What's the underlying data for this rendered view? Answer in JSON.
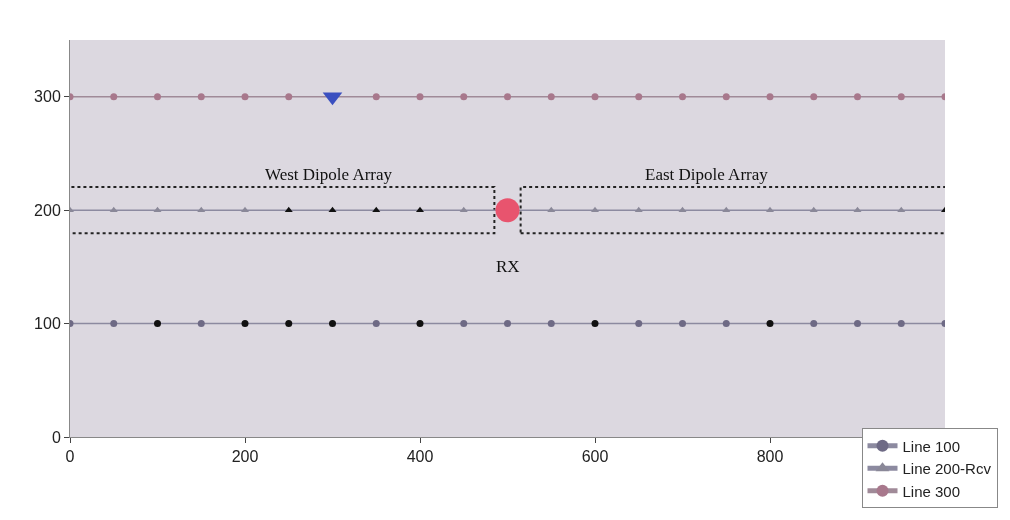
{
  "chart_data": {
    "type": "line",
    "x": [
      0,
      50,
      100,
      150,
      200,
      250,
      300,
      350,
      400,
      450,
      500,
      550,
      600,
      650,
      700,
      750,
      800,
      850,
      900,
      950,
      1000
    ],
    "series": [
      {
        "name": "Line 100",
        "color": "#8c8aa0",
        "marker": "circle",
        "values": [
          100,
          100,
          100,
          100,
          100,
          100,
          100,
          100,
          100,
          100,
          100,
          100,
          100,
          100,
          100,
          100,
          100,
          100,
          100,
          100,
          100
        ],
        "colors": [
          "#6e6a85",
          "#6e6a85",
          "#111111",
          "#6e6a85",
          "#111111",
          "#111111",
          "#111111",
          "#6e6a85",
          "#111111",
          "#6e6a85",
          "#6e6a85",
          "#6e6a85",
          "#111111",
          "#6e6a85",
          "#6e6a85",
          "#6e6a85",
          "#111111",
          "#6e6a85",
          "#6e6a85",
          "#6e6a85",
          "#6e6a85"
        ]
      },
      {
        "name": "Line 200-Rcv",
        "color": "#8c8aa0",
        "marker": "triangle",
        "values": [
          200,
          200,
          200,
          200,
          200,
          200,
          200,
          200,
          200,
          200,
          null,
          200,
          200,
          200,
          200,
          200,
          200,
          200,
          200,
          200,
          200
        ],
        "colors": [
          "#8a8898",
          "#8a8898",
          "#8a8898",
          "#8a8898",
          "#8a8898",
          "#111111",
          "#111111",
          "#111111",
          "#111111",
          "#8a8898",
          "#8a8898",
          "#8a8898",
          "#8a8898",
          "#8a8898",
          "#8a8898",
          "#8a8898",
          "#8a8898",
          "#8a8898",
          "#8a8898",
          "#8a8898",
          "#111111"
        ]
      },
      {
        "name": "Line 300",
        "color": "#a08a98",
        "marker": "circle",
        "values": [
          300,
          300,
          300,
          300,
          300,
          300,
          null,
          300,
          300,
          300,
          300,
          300,
          300,
          300,
          300,
          300,
          300,
          300,
          300,
          300,
          300
        ],
        "colors": [
          "#a8788c",
          "#a8788c",
          "#a8788c",
          "#a8788c",
          "#a8788c",
          "#a8788c",
          "#a8788c",
          "#a8788c",
          "#a8788c",
          "#a8788c",
          "#a8788c",
          "#a8788c",
          "#a8788c",
          "#a8788c",
          "#a8788c",
          "#a8788c",
          "#a8788c",
          "#a8788c",
          "#a8788c",
          "#a8788c",
          "#a8788c"
        ]
      },
      {
        "type": "scatter",
        "x": [
          300
        ],
        "color": "#3a4fc0",
        "marker": "triangle-down",
        "values": [
          300
        ]
      },
      {
        "type": "scatter",
        "x": [
          500
        ],
        "color": "#e8546e",
        "marker": "circle",
        "values": [
          200
        ]
      }
    ],
    "xlim": [
      0,
      1000
    ],
    "xticks": [
      0,
      200,
      400,
      600,
      800
    ],
    "ylim": [
      0,
      350
    ],
    "yticks": [
      0,
      100,
      200,
      300
    ],
    "annotations": [
      "West Dipole Array",
      "East Dipole Array",
      "RX"
    ],
    "legend": "bottom right"
  }
}
